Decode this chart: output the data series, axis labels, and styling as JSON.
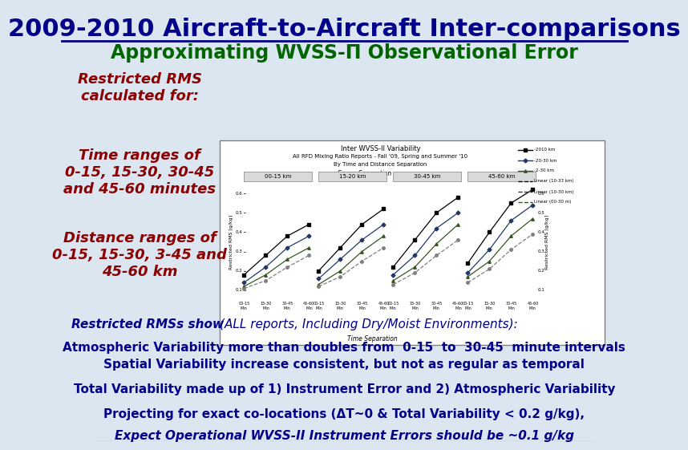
{
  "title": "2009-2010 Aircraft-to-Aircraft Inter-comparisons",
  "subtitle": "Approximating WVSS-Π Observational Error",
  "bg_color": "#dce6f1",
  "title_color": "#00008B",
  "subtitle_color": "#006400",
  "left_text_color": "#8B0000",
  "body_color": "#00008B",
  "left_texts": [
    "Restricted RMS\ncalculated for:",
    "Time ranges of\n0-15, 15-30, 30-45\nand 45-60 minutes",
    "Distance ranges of\n0-15, 15-30, 3-45 and\n45-60 km"
  ]
}
